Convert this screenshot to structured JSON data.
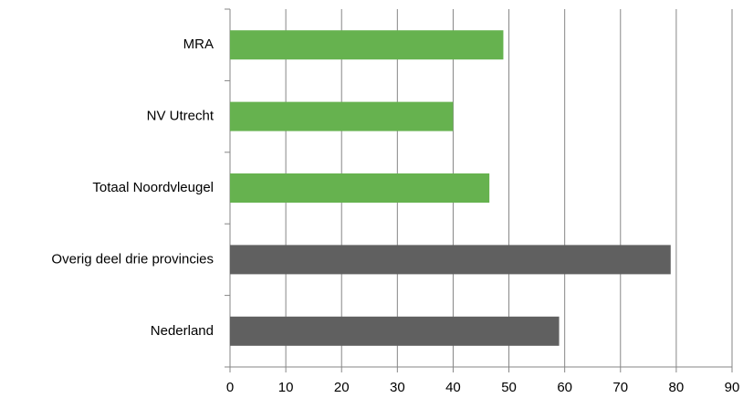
{
  "chart_data": {
    "type": "bar",
    "orientation": "horizontal",
    "categories": [
      "MRA",
      "NV Utrecht",
      "Totaal Noordvleugel",
      "Overig deel drie provincies",
      "Nederland"
    ],
    "values": [
      49,
      40,
      46.5,
      79,
      59
    ],
    "colors": [
      "#66b24f",
      "#66b24f",
      "#66b24f",
      "#606060",
      "#606060"
    ],
    "xlim": [
      0,
      90
    ],
    "xticks": [
      0,
      10,
      20,
      30,
      40,
      50,
      60,
      70,
      80,
      90
    ],
    "grid": true
  }
}
